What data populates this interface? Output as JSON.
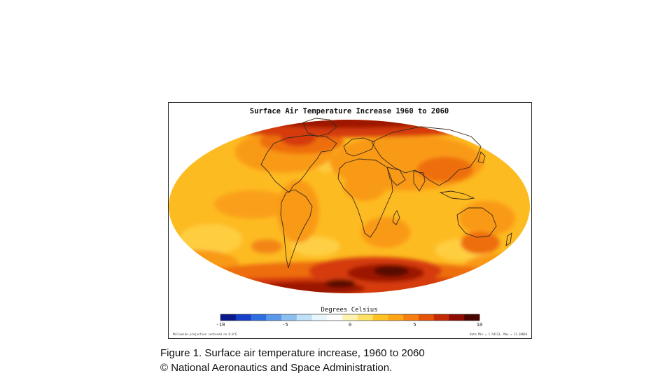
{
  "map": {
    "title": "Surface Air Temperature Increase 1960 to 2060",
    "legend_title": "Degrees Celsius",
    "legend_ticks": [
      "-10",
      "-5",
      "0",
      "5",
      "10"
    ],
    "legend_colors": [
      "#0a1a8c",
      "#1640c8",
      "#2f6ee0",
      "#5a98ea",
      "#8cbff0",
      "#bfe0f6",
      "#e8f6fb",
      "#ffffff",
      "#fff2b0",
      "#ffe066",
      "#ffc224",
      "#ffa516",
      "#f77e10",
      "#e55208",
      "#c42a04",
      "#8e0c02",
      "#4a0600"
    ],
    "footer_left": "Mollweide projection centered on 0.0°E",
    "footer_right": "Data Min = 1.54113, Max = 11.38604",
    "colors": {
      "ocean_base": "#fdbb22",
      "warm": "#f99a18",
      "hot": "#ee6e10",
      "very_hot": "#d53a08",
      "extreme": "#9c1204",
      "darkest": "#560800",
      "cool": "#ffdc5a",
      "coastline": "#3a2a1a"
    }
  },
  "caption": {
    "line1": "Figure 1. Surface air temperature increase, 1960 to 2060",
    "line2": "© National Aeronautics and Space Administration."
  }
}
